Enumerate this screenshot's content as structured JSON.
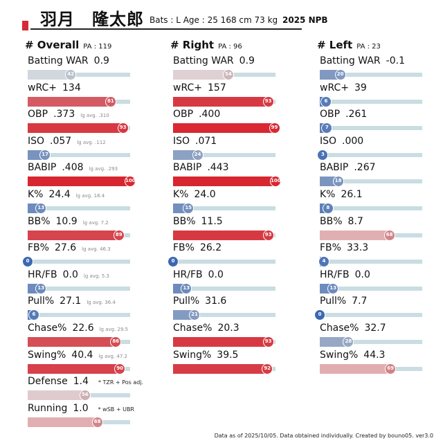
{
  "header": {
    "name": "羽月　隆太郎",
    "info": "Bats : L  Age : 25  168 cm 73 kg",
    "season": "2025 NPB"
  },
  "footer": "Data as of 2025/10/05. Data obtained individually. Created by bouno05.  ver3.0",
  "chart_data": {
    "type": "bar",
    "title": "",
    "xlabel": "",
    "ylabel": "",
    "xlim": [
      0,
      100
    ],
    "groups": [
      {
        "name": "# Overall",
        "pa": "PA : 119",
        "stats": [
          {
            "label": "Batting WAR",
            "value": "0.9",
            "percentile": 42,
            "lg": ""
          },
          {
            "label": "wRC+",
            "value": "134",
            "percentile": 81,
            "lg": ""
          },
          {
            "label": "OBP",
            "value": ".373",
            "percentile": 93,
            "lg": "lg avg. .310"
          },
          {
            "label": "ISO",
            "value": ".057",
            "percentile": 17,
            "lg": "lg avg. .112"
          },
          {
            "label": "BABIP",
            "value": ".408",
            "percentile": 100,
            "lg": "lg avg. .293"
          },
          {
            "label": "K%",
            "value": "24.4",
            "percentile": 13,
            "lg": "lg avg. 18.4"
          },
          {
            "label": "BB%",
            "value": "10.9",
            "percentile": 89,
            "lg": "lg avg. 7.2"
          },
          {
            "label": "FB%",
            "value": "27.6",
            "percentile": 0,
            "lg": "lg avg. 46.3"
          },
          {
            "label": "HR/FB",
            "value": "0.0",
            "percentile": 13,
            "lg": "lg avg. 5.3"
          },
          {
            "label": "Pull%",
            "value": "27.1",
            "percentile": 6,
            "lg": "lg avg. 36.4"
          },
          {
            "label": "Chase%",
            "value": "22.6",
            "percentile": 86,
            "lg": "lg avg. 29.5"
          },
          {
            "label": "Swing%",
            "value": "40.4",
            "percentile": 90,
            "lg": "lg avg. 47.2"
          },
          {
            "label": "Defense",
            "value": "1.4",
            "percentile": 56,
            "lg": "",
            "note": "* TZR + Pos adj."
          },
          {
            "label": "Running",
            "value": "1.0",
            "percentile": 68,
            "lg": "",
            "note": "* wSB + UBR"
          }
        ]
      },
      {
        "name": "# Right",
        "pa": "PA : 96",
        "stats": [
          {
            "label": "Batting WAR",
            "value": "0.9",
            "percentile": 54,
            "lg": ""
          },
          {
            "label": "wRC+",
            "value": "157",
            "percentile": 93,
            "lg": ""
          },
          {
            "label": "OBP",
            "value": ".400",
            "percentile": 99,
            "lg": ""
          },
          {
            "label": "ISO",
            "value": ".071",
            "percentile": 24,
            "lg": ""
          },
          {
            "label": "BABIP",
            "value": ".443",
            "percentile": 100,
            "lg": ""
          },
          {
            "label": "K%",
            "value": "24.0",
            "percentile": 15,
            "lg": ""
          },
          {
            "label": "BB%",
            "value": "11.5",
            "percentile": 93,
            "lg": ""
          },
          {
            "label": "FB%",
            "value": "26.2",
            "percentile": 0,
            "lg": ""
          },
          {
            "label": "HR/FB",
            "value": "0.0",
            "percentile": 13,
            "lg": ""
          },
          {
            "label": "Pull%",
            "value": "31.6",
            "percentile": 21,
            "lg": ""
          },
          {
            "label": "Chase%",
            "value": "20.3",
            "percentile": 93,
            "lg": ""
          },
          {
            "label": "Swing%",
            "value": "39.5",
            "percentile": 92,
            "lg": ""
          }
        ]
      },
      {
        "name": "# Left",
        "pa": "PA : 23",
        "stats": [
          {
            "label": "Batting WAR",
            "value": "-0.1",
            "percentile": 20,
            "lg": ""
          },
          {
            "label": "wRC+",
            "value": "39",
            "percentile": 6,
            "lg": ""
          },
          {
            "label": "OBP",
            "value": ".261",
            "percentile": 7,
            "lg": ""
          },
          {
            "label": "ISO",
            "value": ".000",
            "percentile": 3,
            "lg": ""
          },
          {
            "label": "BABIP",
            "value": ".267",
            "percentile": 18,
            "lg": ""
          },
          {
            "label": "K%",
            "value": "26.1",
            "percentile": 8,
            "lg": ""
          },
          {
            "label": "BB%",
            "value": "8.7",
            "percentile": 68,
            "lg": ""
          },
          {
            "label": "FB%",
            "value": "33.3",
            "percentile": 4,
            "lg": ""
          },
          {
            "label": "HR/FB",
            "value": "0.0",
            "percentile": 13,
            "lg": ""
          },
          {
            "label": "Pull%",
            "value": "7.7",
            "percentile": 0,
            "lg": ""
          },
          {
            "label": "Chase%",
            "value": "32.7",
            "percentile": 28,
            "lg": ""
          },
          {
            "label": "Swing%",
            "value": "44.3",
            "percentile": 69,
            "lg": ""
          }
        ]
      }
    ]
  }
}
